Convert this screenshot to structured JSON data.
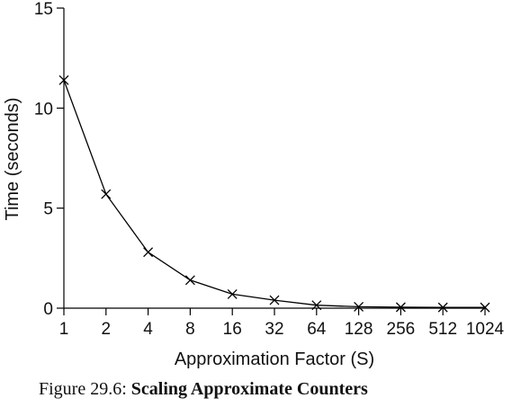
{
  "chart_data": {
    "type": "line",
    "categories": [
      "1",
      "2",
      "4",
      "8",
      "16",
      "32",
      "64",
      "128",
      "256",
      "512",
      "1024"
    ],
    "series": [
      {
        "values": [
          11.4,
          5.7,
          2.8,
          1.4,
          0.7,
          0.4,
          0.15,
          0.07,
          0.05,
          0.04,
          0.04
        ]
      }
    ],
    "xlabel": "Approximation Factor (S)",
    "ylabel": "Time (seconds)",
    "ylim": [
      0,
      15
    ],
    "yticks": [
      "0",
      "5",
      "10",
      "15"
    ],
    "marker": "x",
    "line_color": "#000000",
    "grid": false
  },
  "caption": {
    "prefix": "Figure 29.6:",
    "title": "Scaling Approximate Counters"
  }
}
